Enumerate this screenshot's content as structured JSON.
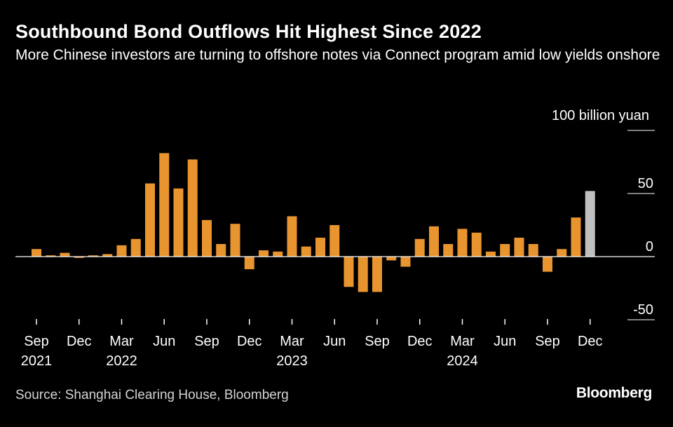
{
  "header": {
    "title": "Southbound Bond Outflows Hit Highest Since 2022",
    "subtitle": "More Chinese investors are turning to offshore notes via Connect program amid low yields onshore"
  },
  "footer": {
    "source": "Source: Shanghai Clearing House, Bloomberg",
    "brand": "Bloomberg"
  },
  "colors": {
    "bar": "#e8952f",
    "highlight": "#c0c0c0",
    "zero_line": "#ffffff",
    "grid": "#ffffff",
    "text": "#ffffff"
  },
  "chart_data": {
    "type": "bar",
    "unit_label": "100 billion yuan",
    "ylim": [
      -50,
      100
    ],
    "y_ticks": [
      {
        "value": 100,
        "label": ""
      },
      {
        "value": 50,
        "label": "50"
      },
      {
        "value": 0,
        "label": "0"
      },
      {
        "value": -50,
        "label": "-50"
      }
    ],
    "x_ticks": [
      {
        "index": 0,
        "month": "Sep",
        "year": "2021"
      },
      {
        "index": 3,
        "month": "Dec",
        "year": ""
      },
      {
        "index": 6,
        "month": "Mar",
        "year": "2022"
      },
      {
        "index": 9,
        "month": "Jun",
        "year": ""
      },
      {
        "index": 12,
        "month": "Sep",
        "year": ""
      },
      {
        "index": 15,
        "month": "Dec",
        "year": ""
      },
      {
        "index": 18,
        "month": "Mar",
        "year": "2023"
      },
      {
        "index": 21,
        "month": "Jun",
        "year": ""
      },
      {
        "index": 24,
        "month": "Sep",
        "year": ""
      },
      {
        "index": 27,
        "month": "Dec",
        "year": ""
      },
      {
        "index": 30,
        "month": "Mar",
        "year": "2024"
      },
      {
        "index": 33,
        "month": "Jun",
        "year": ""
      },
      {
        "index": 36,
        "month": "Sep",
        "year": ""
      },
      {
        "index": 39,
        "month": "Dec",
        "year": ""
      }
    ],
    "categories": [
      "2021-09",
      "2021-10",
      "2021-11",
      "2021-12",
      "2022-01",
      "2022-02",
      "2022-03",
      "2022-04",
      "2022-05",
      "2022-06",
      "2022-07",
      "2022-08",
      "2022-09",
      "2022-10",
      "2022-11",
      "2022-12",
      "2023-01",
      "2023-02",
      "2023-03",
      "2023-04",
      "2023-05",
      "2023-06",
      "2023-07",
      "2023-08",
      "2023-09",
      "2023-10",
      "2023-11",
      "2023-12",
      "2024-01",
      "2024-02",
      "2024-03",
      "2024-04",
      "2024-05",
      "2024-06",
      "2024-07",
      "2024-08",
      "2024-09",
      "2024-10",
      "2024-11",
      "2024-12"
    ],
    "values": [
      6,
      1,
      3,
      -1,
      1,
      2,
      9,
      14,
      58,
      82,
      54,
      77,
      29,
      10,
      26,
      -10,
      5,
      4,
      32,
      8,
      15,
      25,
      -24,
      -28,
      -28,
      -3,
      -8,
      14,
      24,
      10,
      22,
      19,
      4,
      10,
      15,
      10,
      -12,
      6,
      31,
      52
    ],
    "highlight_index": 39
  }
}
